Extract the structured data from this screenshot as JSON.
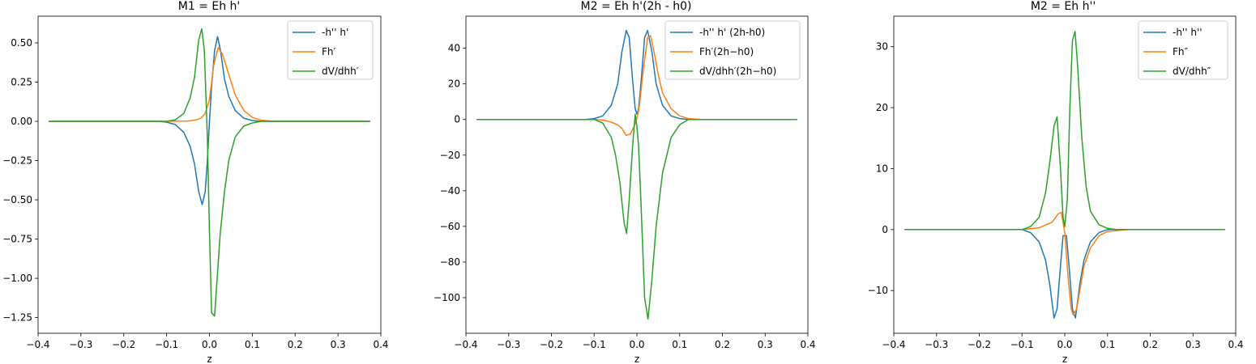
{
  "chart_data": [
    {
      "type": "line",
      "title": "M1 = Eh h'",
      "xlabel": "z",
      "ylabel": "",
      "xlim": [
        -0.4,
        0.4
      ],
      "ylim": [
        -1.35,
        0.67
      ],
      "xticks": [
        -0.4,
        -0.3,
        -0.2,
        -0.1,
        0.0,
        0.1,
        0.2,
        0.3,
        0.4
      ],
      "xtick_labels": [
        "−0.4",
        "−0.3",
        "−0.2",
        "−0.1",
        "0.0",
        "0.1",
        "0.2",
        "0.3",
        "0.4"
      ],
      "yticks": [
        0.5,
        0.25,
        0.0,
        -0.25,
        -0.5,
        -0.75,
        -1.0,
        -1.25
      ],
      "ytick_labels": [
        "0.50",
        "0.25",
        "0.00",
        "−0.25",
        "−0.50",
        "−0.75",
        "−1.00",
        "−1.25"
      ],
      "grid": false,
      "legend_position": "top-right",
      "series": [
        {
          "name": "-h'' h'",
          "color": "#1f77b4",
          "x": [
            -0.375,
            -0.12,
            -0.1,
            -0.08,
            -0.06,
            -0.045,
            -0.035,
            -0.025,
            -0.017,
            -0.01,
            -0.005,
            0.0,
            0.005,
            0.012,
            0.019,
            0.026,
            0.035,
            0.045,
            0.06,
            0.08,
            0.1,
            0.12,
            0.375
          ],
          "y": [
            0.0,
            0.0,
            -0.005,
            -0.02,
            -0.07,
            -0.16,
            -0.27,
            -0.45,
            -0.53,
            -0.45,
            -0.25,
            0.0,
            0.22,
            0.45,
            0.54,
            0.45,
            0.27,
            0.16,
            0.07,
            0.02,
            0.005,
            0.0,
            0.0
          ]
        },
        {
          "name": "Fh′",
          "color": "#ff7f0e",
          "x": [
            -0.375,
            -0.1,
            -0.05,
            -0.03,
            -0.02,
            -0.01,
            0.0,
            0.01,
            0.02,
            0.03,
            0.045,
            0.06,
            0.08,
            0.1,
            0.12,
            0.15,
            0.375
          ],
          "y": [
            0.0,
            0.0,
            0.002,
            0.01,
            0.02,
            0.05,
            0.14,
            0.36,
            0.47,
            0.43,
            0.3,
            0.17,
            0.07,
            0.025,
            0.008,
            0.0,
            0.0
          ]
        },
        {
          "name": "dV/dhh′",
          "color": "#2ca02c",
          "x": [
            -0.375,
            -0.1,
            -0.08,
            -0.06,
            -0.045,
            -0.035,
            -0.025,
            -0.018,
            -0.012,
            -0.005,
            0.0,
            0.005,
            0.012,
            0.018,
            0.025,
            0.035,
            0.045,
            0.06,
            0.08,
            0.1,
            0.12,
            0.375
          ],
          "y": [
            0.0,
            0.0,
            0.01,
            0.05,
            0.15,
            0.28,
            0.52,
            0.59,
            0.45,
            -0.1,
            -0.7,
            -1.22,
            -1.24,
            -1.0,
            -0.72,
            -0.45,
            -0.25,
            -0.1,
            -0.03,
            -0.01,
            0.0,
            0.0
          ]
        }
      ]
    },
    {
      "type": "line",
      "title": "M2 = Eh h'(2h - h0)",
      "xlabel": "z",
      "ylabel": "",
      "xlim": [
        -0.4,
        0.4
      ],
      "ylim": [
        -120,
        58
      ],
      "xticks": [
        -0.4,
        -0.3,
        -0.2,
        -0.1,
        0.0,
        0.1,
        0.2,
        0.3,
        0.4
      ],
      "xtick_labels": [
        "−0.4",
        "−0.3",
        "−0.2",
        "−0.1",
        "0.0",
        "0.1",
        "0.2",
        "0.3",
        "0.4"
      ],
      "yticks": [
        40,
        20,
        0,
        -20,
        -40,
        -60,
        -80,
        -100
      ],
      "ytick_labels": [
        "40",
        "20",
        "0",
        "−20",
        "−40",
        "−60",
        "−80",
        "−100"
      ],
      "grid": false,
      "legend_position": "top-right",
      "series": [
        {
          "name": "-h'' h' (2h-h0)",
          "color": "#1f77b4",
          "x": [
            -0.375,
            -0.12,
            -0.1,
            -0.08,
            -0.06,
            -0.045,
            -0.035,
            -0.025,
            -0.018,
            -0.01,
            -0.004,
            0.0,
            0.004,
            0.01,
            0.018,
            0.025,
            0.035,
            0.045,
            0.06,
            0.08,
            0.1,
            0.12,
            0.375
          ],
          "y": [
            0.0,
            0.0,
            0.5,
            2,
            8,
            20,
            38,
            50,
            46,
            22,
            6,
            3,
            6,
            22,
            46,
            50,
            38,
            20,
            8,
            2,
            0.5,
            0.0,
            0.0
          ]
        },
        {
          "name": "Fh′(2h−h0)",
          "color": "#ff7f0e",
          "x": [
            -0.375,
            -0.1,
            -0.08,
            -0.06,
            -0.045,
            -0.035,
            -0.025,
            -0.015,
            -0.005,
            0.0,
            0.005,
            0.015,
            0.025,
            0.032,
            0.04,
            0.05,
            0.06,
            0.08,
            0.1,
            0.12,
            0.15,
            0.375
          ],
          "y": [
            0.0,
            0.0,
            -0.3,
            -1.5,
            -3,
            -5,
            -9,
            -8,
            -3,
            1,
            6,
            28,
            46,
            47,
            38,
            25,
            15,
            6,
            2,
            0.5,
            0.0,
            0.0
          ]
        },
        {
          "name": "dV/dhh′(2h−h0)",
          "color": "#2ca02c",
          "x": [
            -0.375,
            -0.1,
            -0.08,
            -0.06,
            -0.05,
            -0.04,
            -0.03,
            -0.024,
            -0.018,
            -0.01,
            -0.004,
            0.0,
            0.004,
            0.01,
            0.018,
            0.026,
            0.035,
            0.045,
            0.06,
            0.08,
            0.1,
            0.12,
            0.375
          ],
          "y": [
            0.0,
            0.0,
            -2,
            -10,
            -20,
            -35,
            -58,
            -64,
            -45,
            -15,
            3,
            -4,
            -15,
            -50,
            -100,
            -112,
            -90,
            -60,
            -30,
            -10,
            -3,
            0.0,
            0.0
          ]
        }
      ]
    },
    {
      "type": "line",
      "title": "M2 = Eh h''",
      "xlabel": "z",
      "ylabel": "",
      "xlim": [
        -0.4,
        0.4
      ],
      "ylim": [
        -17,
        35
      ],
      "xticks": [
        -0.4,
        -0.3,
        -0.2,
        -0.1,
        0.0,
        0.1,
        0.2,
        0.3,
        0.4
      ],
      "xtick_labels": [
        "−0.4",
        "−0.3",
        "−0.2",
        "−0.1",
        "0.0",
        "0.1",
        "0.2",
        "0.3",
        "0.4"
      ],
      "yticks": [
        30,
        20,
        10,
        0,
        -10
      ],
      "ytick_labels": [
        "30",
        "20",
        "10",
        "0",
        "−10"
      ],
      "grid": false,
      "legend_position": "top-right",
      "series": [
        {
          "name": "-h'' h''",
          "color": "#1f77b4",
          "x": [
            -0.375,
            -0.1,
            -0.08,
            -0.06,
            -0.045,
            -0.035,
            -0.025,
            -0.018,
            -0.01,
            -0.004,
            0.0,
            0.004,
            0.01,
            0.018,
            0.025,
            0.035,
            0.045,
            0.06,
            0.08,
            0.1,
            0.375
          ],
          "y": [
            0.0,
            0.0,
            -0.5,
            -2,
            -5,
            -9,
            -14.5,
            -13,
            -6,
            -1,
            -1,
            -1,
            -6,
            -13,
            -14.5,
            -9,
            -5,
            -2,
            -0.5,
            0.0,
            0.0
          ]
        },
        {
          "name": "Fh″",
          "color": "#ff7f0e",
          "x": [
            -0.375,
            -0.1,
            -0.06,
            -0.03,
            -0.015,
            -0.008,
            0.0,
            0.008,
            0.015,
            0.02,
            0.028,
            0.035,
            0.045,
            0.06,
            0.08,
            0.1,
            0.15,
            0.375
          ],
          "y": [
            0.0,
            0.0,
            0.3,
            1.2,
            2.6,
            2.8,
            -0.5,
            -8,
            -13,
            -14,
            -13,
            -10,
            -6,
            -3,
            -1,
            -0.3,
            0.0,
            0.0
          ]
        },
        {
          "name": "dV/dhh″",
          "color": "#2ca02c",
          "x": [
            -0.375,
            -0.1,
            -0.08,
            -0.06,
            -0.045,
            -0.035,
            -0.025,
            -0.018,
            -0.01,
            -0.004,
            0.0,
            0.006,
            0.012,
            0.018,
            0.024,
            0.03,
            0.04,
            0.05,
            0.06,
            0.08,
            0.1,
            0.12,
            0.375
          ],
          "y": [
            0.0,
            0.0,
            0.5,
            2,
            6,
            11,
            17,
            18.5,
            10,
            2,
            0.5,
            5,
            20,
            31,
            32.5,
            27,
            15,
            7,
            3,
            0.8,
            0.2,
            0.0,
            0.0
          ]
        }
      ]
    }
  ]
}
